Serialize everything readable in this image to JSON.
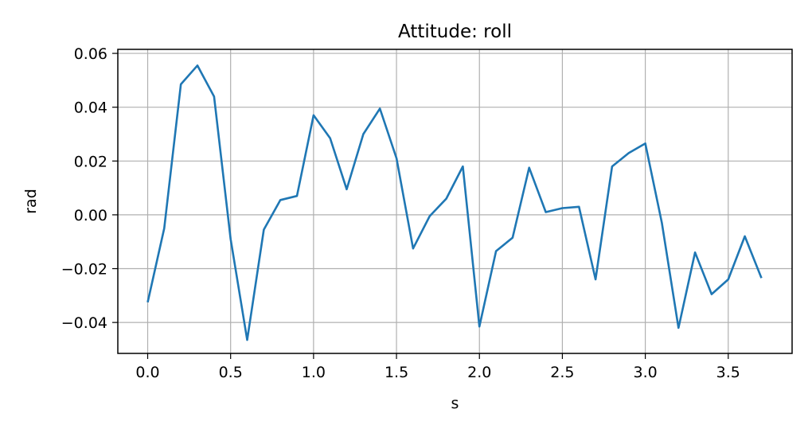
{
  "chart_data": {
    "type": "line",
    "title": "Attitude: roll",
    "xlabel": "s",
    "ylabel": "rad",
    "xlim": [
      -0.18,
      3.885
    ],
    "ylim": [
      -0.0515,
      0.0615
    ],
    "grid": true,
    "x_ticks": [
      0.0,
      0.5,
      1.0,
      1.5,
      2.0,
      2.5,
      3.0,
      3.5
    ],
    "x_tick_labels": [
      "0.0",
      "0.5",
      "1.0",
      "1.5",
      "2.0",
      "2.5",
      "3.0",
      "3.5"
    ],
    "y_ticks": [
      -0.04,
      -0.02,
      0.0,
      0.02,
      0.04,
      0.06
    ],
    "y_tick_labels": [
      "−0.04",
      "−0.02",
      "0.00",
      "0.02",
      "0.04",
      "0.06"
    ],
    "line_color": "#1f77b4",
    "series": [
      {
        "x": [
          0.0,
          0.1,
          0.2,
          0.3,
          0.4,
          0.5,
          0.6,
          0.7,
          0.8,
          0.9,
          1.0,
          1.1,
          1.2,
          1.3,
          1.4,
          1.5,
          1.6,
          1.7,
          1.8,
          1.9,
          2.0,
          2.1,
          2.2,
          2.3,
          2.4,
          2.5,
          2.6,
          2.7,
          2.8,
          2.9,
          3.0,
          3.1,
          3.2,
          3.3,
          3.4,
          3.5,
          3.6,
          3.7
        ],
        "values": [
          -0.0325,
          -0.005,
          0.0485,
          0.0555,
          0.044,
          -0.009,
          -0.0465,
          -0.0055,
          0.0055,
          0.007,
          0.037,
          0.0285,
          0.0095,
          0.03,
          0.0395,
          0.021,
          -0.0125,
          -0.0005,
          0.006,
          0.018,
          -0.0415,
          -0.0135,
          -0.0085,
          0.0175,
          0.001,
          0.0025,
          0.003,
          -0.024,
          0.018,
          0.023,
          0.0265,
          -0.003,
          -0.042,
          -0.014,
          -0.0295,
          -0.024,
          -0.008,
          -0.0235
        ]
      }
    ]
  }
}
